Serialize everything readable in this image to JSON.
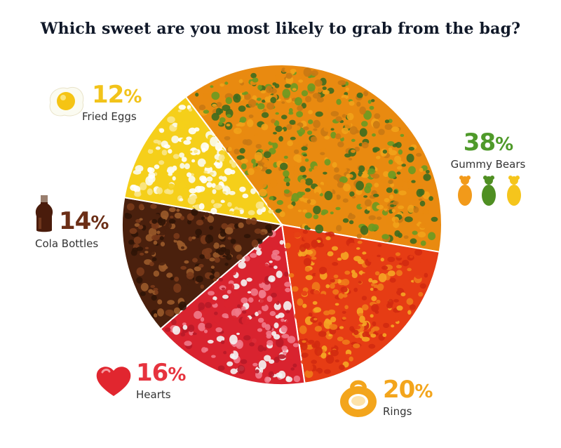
{
  "title": "Which sweet are you most likely to grab from the bag?",
  "chart_data": {
    "type": "pie",
    "title": "Which sweet are you most likely to grab from the bag?",
    "slices": [
      {
        "label": "Gummy Bears",
        "value": 38,
        "percent_text": "38%",
        "color": "#4f9a2a"
      },
      {
        "label": "Rings",
        "value": 20,
        "percent_text": "20%",
        "color": "#f3a51c"
      },
      {
        "label": "Hearts",
        "value": 16,
        "percent_text": "16%",
        "color": "#e6333e"
      },
      {
        "label": "Cola Bottles",
        "value": 14,
        "percent_text": "14%",
        "color": "#6b2e16"
      },
      {
        "label": "Fried Eggs",
        "value": 12,
        "percent_text": "12%",
        "color": "#f2d21c"
      }
    ]
  },
  "colors": {
    "gummy_texture": [
      "#e98a10",
      "#f2a21a",
      "#3d6b1f",
      "#6a9a22",
      "#c97813"
    ],
    "rings_texture": [
      "#e63c14",
      "#f07a1a",
      "#f5a623",
      "#d12a10"
    ],
    "hearts_texture": [
      "#d9232f",
      "#f4f4f4",
      "#f07a8a",
      "#b81a28"
    ],
    "cola_texture": [
      "#4a200d",
      "#7a3a1a",
      "#2f1407",
      "#9a5a2a"
    ],
    "eggs_texture": [
      "#f5cf1a",
      "#ffffff",
      "#f9e68a",
      "#fbfbf1"
    ]
  },
  "icons": {
    "gummy_bears": "gummy-bears-icon",
    "rings": "ring-sweet-icon",
    "hearts": "heart-sweet-icon",
    "cola_bottles": "cola-bottle-icon",
    "fried_eggs": "fried-egg-icon"
  }
}
